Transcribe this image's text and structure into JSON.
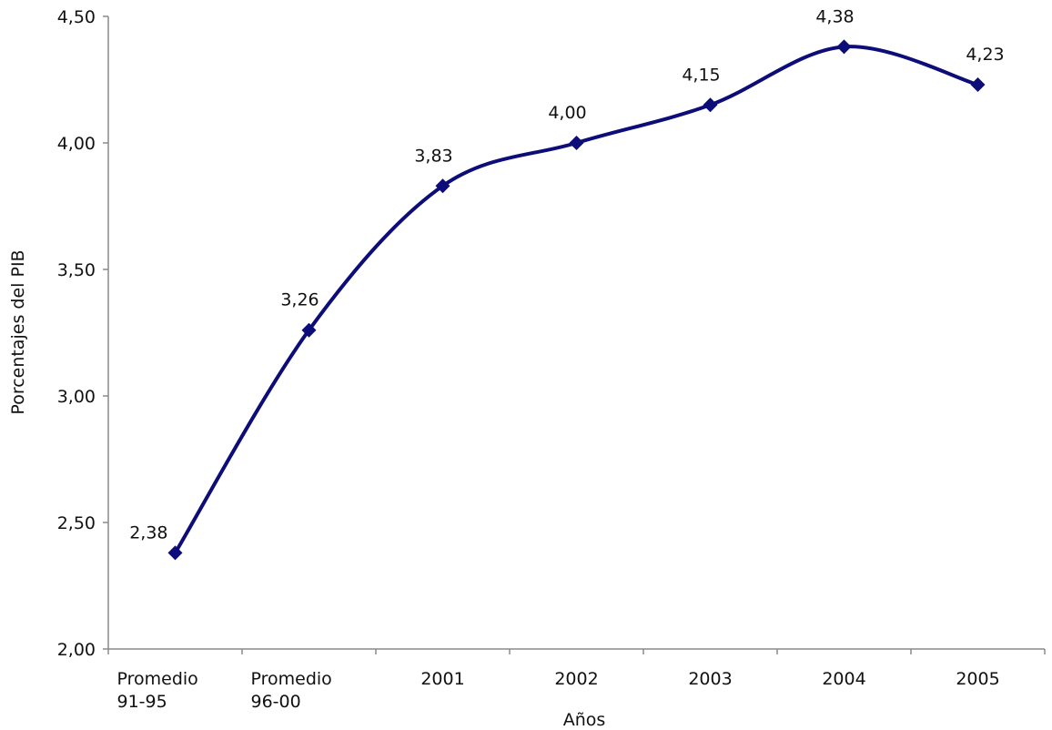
{
  "chart_data": {
    "type": "line",
    "categories": [
      [
        "Promedio",
        "91-95"
      ],
      [
        "Promedio",
        "96-00"
      ],
      [
        "2001"
      ],
      [
        "2002"
      ],
      [
        "2003"
      ],
      [
        "2004"
      ],
      [
        "2005"
      ]
    ],
    "values": [
      2.38,
      3.26,
      3.83,
      4.0,
      4.15,
      4.38,
      4.23
    ],
    "data_labels": [
      "2,38",
      "3,26",
      "3,83",
      "4,00",
      "4,15",
      "4,38",
      "4,23"
    ],
    "ylim": [
      2.0,
      4.5
    ],
    "yticks": [
      2.0,
      2.5,
      3.0,
      3.5,
      4.0,
      4.5
    ],
    "ytick_labels": [
      "2,00",
      "2,50",
      "3,00",
      "3,50",
      "4,00",
      "4,50"
    ],
    "xlabel": "Años",
    "ylabel": "Porcentajes del PIB",
    "title": "",
    "grid": false,
    "legend": "none",
    "marker": "diamond",
    "smooth": true,
    "colors": {
      "line": "#0d0d7a",
      "marker": "#0d0d7a",
      "axis": "#8a8a8a",
      "text": "#111111"
    }
  }
}
